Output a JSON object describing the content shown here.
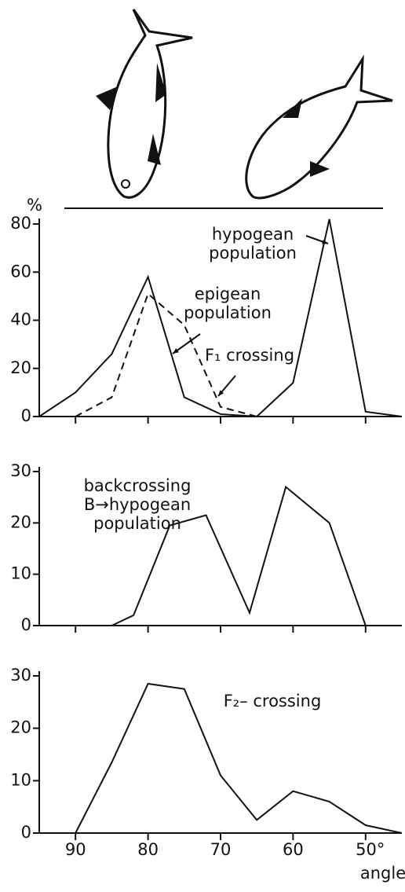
{
  "chart_data": [
    {
      "type": "line",
      "y_label": "%",
      "xlim": [
        95,
        45
      ],
      "ylim": [
        0,
        80
      ],
      "yticks": [
        0,
        20,
        40,
        60,
        80
      ],
      "series": [
        {
          "name": "epigean population",
          "color": "#111111",
          "style": "solid",
          "x": [
            95,
            90,
            85,
            80,
            75,
            70,
            65
          ],
          "values": [
            0,
            10,
            26,
            58,
            8,
            1,
            0
          ]
        },
        {
          "name": "hypogean population",
          "color": "#111111",
          "style": "solid",
          "x": [
            65,
            60,
            55,
            50,
            45
          ],
          "values": [
            0,
            14,
            82,
            2,
            0
          ]
        },
        {
          "name": "F₁ crossing",
          "color": "#111111",
          "style": "dashed",
          "x": [
            90,
            85,
            80,
            75,
            70,
            65
          ],
          "values": [
            0,
            8,
            51,
            38,
            4,
            0
          ]
        }
      ]
    },
    {
      "type": "line",
      "xlim": [
        95,
        45
      ],
      "ylim": [
        0,
        30
      ],
      "yticks": [
        0,
        10,
        20,
        30
      ],
      "series": [
        {
          "name": "backcrossing B→hypogean population",
          "color": "#111111",
          "style": "solid",
          "x": [
            85,
            82,
            77,
            72,
            66,
            61,
            55,
            50
          ],
          "values": [
            0,
            2,
            19.5,
            21.5,
            2.5,
            27,
            20,
            0
          ]
        }
      ]
    },
    {
      "type": "line",
      "x_label": "angle",
      "xlim": [
        95,
        45
      ],
      "ylim": [
        0,
        30
      ],
      "yticks": [
        0,
        10,
        20,
        30
      ],
      "xticks": [
        90,
        80,
        70,
        60,
        {
          "value": 50,
          "label": "50°"
        }
      ],
      "series": [
        {
          "name": "F₂– crossing",
          "color": "#111111",
          "style": "solid",
          "x": [
            90,
            85,
            80,
            75,
            70,
            65,
            60,
            55,
            50,
            45
          ],
          "values": [
            0,
            13.5,
            28.5,
            27.5,
            11,
            2.5,
            8,
            6,
            1.5,
            0
          ]
        }
      ]
    }
  ]
}
